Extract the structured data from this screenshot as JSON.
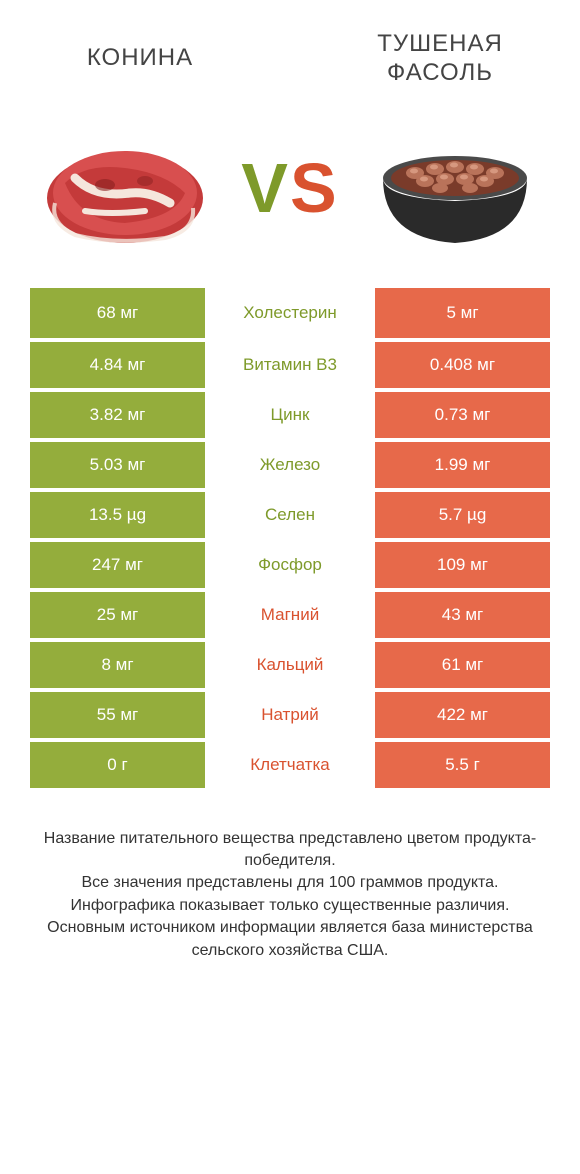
{
  "colors": {
    "green": "#94ad3c",
    "orange": "#e7694a",
    "text_green": "#7e9a2a",
    "text_orange": "#d9522f",
    "white": "#ffffff",
    "title": "#444444",
    "footer": "#333333",
    "meat_red": "#c43a3a",
    "meat_fat": "#f5e6dc",
    "meat_dark": "#8a1f1f",
    "bowl": "#2a2a2a",
    "bowl_rim": "#4a4a4a",
    "bean": "#b9735a",
    "bean_hl": "#d6987f",
    "sauce": "#7a3b2a"
  },
  "header": {
    "left": "КОНИНА",
    "right": "ТУШЕНАЯ ФАСОЛЬ",
    "vs_v": "V",
    "vs_s": "S"
  },
  "rows": [
    {
      "left": "68 мг",
      "mid": "Холестерин",
      "right": "5 мг",
      "winner": "left"
    },
    {
      "left": "4.84 мг",
      "mid": "Витамин B3",
      "right": "0.408 мг",
      "winner": "left"
    },
    {
      "left": "3.82 мг",
      "mid": "Цинк",
      "right": "0.73 мг",
      "winner": "left"
    },
    {
      "left": "5.03 мг",
      "mid": "Железо",
      "right": "1.99 мг",
      "winner": "left"
    },
    {
      "left": "13.5 µg",
      "mid": "Селен",
      "right": "5.7 µg",
      "winner": "left"
    },
    {
      "left": "247 мг",
      "mid": "Фосфор",
      "right": "109 мг",
      "winner": "left"
    },
    {
      "left": "25 мг",
      "mid": "Магний",
      "right": "43 мг",
      "winner": "right"
    },
    {
      "left": "8 мг",
      "mid": "Кальций",
      "right": "61 мг",
      "winner": "right"
    },
    {
      "left": "55 мг",
      "mid": "Натрий",
      "right": "422 мг",
      "winner": "right"
    },
    {
      "left": "0 г",
      "mid": "Клетчатка",
      "right": "5.5 г",
      "winner": "right"
    }
  ],
  "footer": {
    "l1": "Название питательного вещества представлено цветом продукта-победителя.",
    "l2": "Все значения представлены для 100 граммов продукта.",
    "l3": "Инфографика показывает только существенные различия.",
    "l4": "Основным источником информации является база министерства сельского хозяйства США."
  }
}
